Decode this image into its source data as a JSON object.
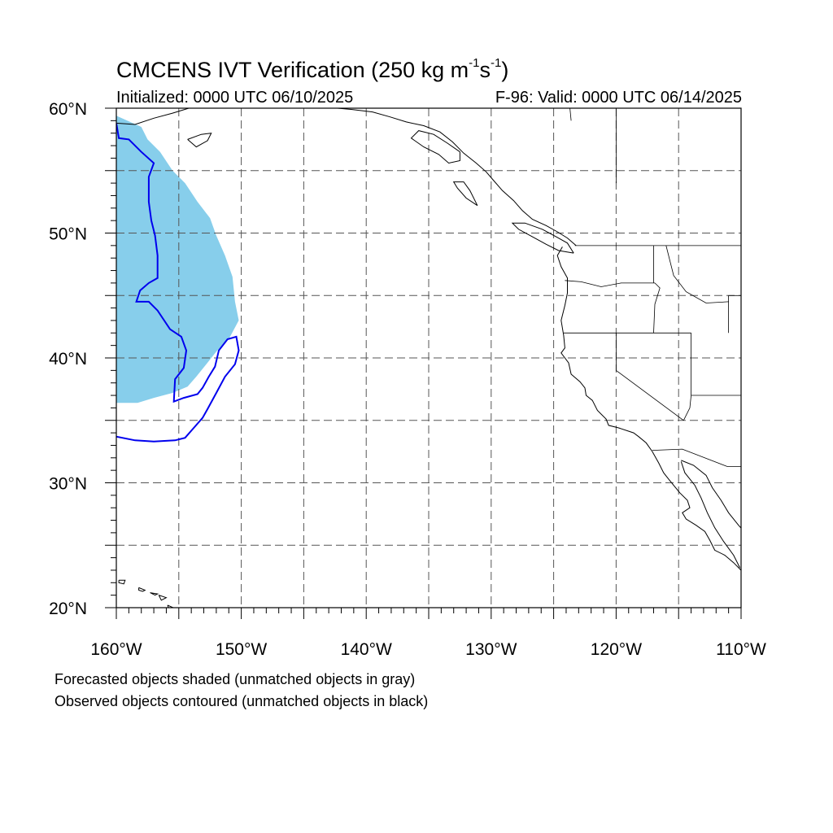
{
  "title": {
    "prefix": "CMCENS IVT Verification (250 kg m",
    "sup1": "-1",
    "mid": "s",
    "sup2": "-1",
    "suffix": ")"
  },
  "subtitle_left": "Initialized: 0000 UTC 06/10/2025",
  "subtitle_right": "F-96: Valid: 0000 UTC 06/14/2025",
  "notes": [
    "Forecasted objects shaded (unmatched objects in gray)",
    "Observed objects contoured (unmatched objects in black)"
  ],
  "map": {
    "projection": "cylindrical equidistant",
    "lon_range": [
      -160,
      -110
    ],
    "lat_range": [
      20,
      60
    ],
    "lon_ticks": [
      {
        "lon": -160,
        "label": "160°W"
      },
      {
        "lon": -150,
        "label": "150°W"
      },
      {
        "lon": -140,
        "label": "140°W"
      },
      {
        "lon": -130,
        "label": "130°W"
      },
      {
        "lon": -120,
        "label": "120°W"
      },
      {
        "lon": -110,
        "label": "110°W"
      }
    ],
    "lat_ticks": [
      {
        "lat": 20,
        "label": "20°N"
      },
      {
        "lat": 30,
        "label": "30°N"
      },
      {
        "lat": 40,
        "label": "40°N"
      },
      {
        "lat": 50,
        "label": "50°N"
      },
      {
        "lat": 60,
        "label": "60°N"
      }
    ],
    "grid_lons": [
      -155,
      -150,
      -145,
      -140,
      -135,
      -130,
      -125,
      -120,
      -115
    ],
    "grid_lats": [
      25,
      30,
      35,
      40,
      45,
      50,
      55
    ],
    "colors": {
      "forecast_fill": "#87ceeb",
      "observed_contour": "#0000ee",
      "coastline": "#000000",
      "grid": "#555555"
    },
    "forecast_object": {
      "name": "forecast IVT object (matched)",
      "polygon": [
        [
          -160,
          59.4
        ],
        [
          -158,
          58.5
        ],
        [
          -157.5,
          57.5
        ],
        [
          -156.5,
          56.5
        ],
        [
          -155.5,
          55
        ],
        [
          -154.5,
          54
        ],
        [
          -153.5,
          52.5
        ],
        [
          -152.5,
          51.2
        ],
        [
          -152,
          49.8
        ],
        [
          -151.3,
          48.2
        ],
        [
          -150.7,
          46.5
        ],
        [
          -150.5,
          44.5
        ],
        [
          -150.2,
          43
        ],
        [
          -151,
          41.5
        ],
        [
          -152,
          40.5
        ],
        [
          -152.8,
          39.5
        ],
        [
          -153.6,
          38.5
        ],
        [
          -154.3,
          37.7
        ],
        [
          -155.5,
          37.2
        ],
        [
          -157,
          36.8
        ],
        [
          -158.3,
          36.4
        ],
        [
          -160,
          36.4
        ]
      ]
    },
    "observed_objects": [
      {
        "name": "observed IVT object 1",
        "polyline": [
          [
            -160,
            58.8
          ],
          [
            -159.8,
            57.6
          ],
          [
            -159,
            57.5
          ],
          [
            -158,
            56.5
          ],
          [
            -157,
            55.6
          ],
          [
            -157.4,
            54.5
          ],
          [
            -157.4,
            52.5
          ],
          [
            -157.2,
            51
          ],
          [
            -156.9,
            49.8
          ],
          [
            -156.7,
            48.2
          ],
          [
            -156.7,
            46.4
          ],
          [
            -157.4,
            46
          ],
          [
            -158.1,
            45.4
          ],
          [
            -158.4,
            44.5
          ],
          [
            -157.4,
            44.5
          ],
          [
            -156.7,
            43.8
          ],
          [
            -155.7,
            42.3
          ],
          [
            -154.8,
            41.7
          ],
          [
            -154.4,
            40.6
          ],
          [
            -154.6,
            39.2
          ],
          [
            -155.3,
            38.3
          ],
          [
            -155.4,
            36.5
          ],
          [
            -154.6,
            36.8
          ],
          [
            -153.5,
            37.1
          ],
          [
            -153.1,
            37.6
          ],
          [
            -152.6,
            38.5
          ],
          [
            -152.1,
            39.3
          ],
          [
            -151.8,
            40.6
          ],
          [
            -151.1,
            41.5
          ],
          [
            -150.4,
            41.7
          ],
          [
            -150.2,
            40.6
          ],
          [
            -150.5,
            39.5
          ],
          [
            -151.3,
            38.5
          ],
          [
            -152,
            37.2
          ],
          [
            -152.7,
            35.9
          ],
          [
            -153.1,
            35.2
          ],
          [
            -153.8,
            34.4
          ],
          [
            -154.5,
            33.6
          ],
          [
            -155.3,
            33.4
          ],
          [
            -157,
            33.3
          ],
          [
            -158.5,
            33.4
          ],
          [
            -160,
            33.7
          ]
        ]
      }
    ],
    "coast": {
      "us_west": [
        [
          -124.3,
          48.9
        ],
        [
          -124.7,
          48.2
        ],
        [
          -124.4,
          47.3
        ],
        [
          -123.9,
          46.4
        ],
        [
          -123.9,
          45.2
        ],
        [
          -124.1,
          44.2
        ],
        [
          -124.4,
          43
        ],
        [
          -124.2,
          41.8
        ],
        [
          -124.1,
          40.8
        ],
        [
          -124.4,
          40.4
        ],
        [
          -123.8,
          39.6
        ],
        [
          -123.6,
          38.7
        ],
        [
          -122.9,
          38.1
        ],
        [
          -122.5,
          37.6
        ],
        [
          -122.4,
          37
        ],
        [
          -121.9,
          36.6
        ],
        [
          -121.5,
          35.8
        ],
        [
          -120.8,
          35.1
        ],
        [
          -120.6,
          34.6
        ],
        [
          -119.8,
          34.4
        ],
        [
          -118.6,
          34.0
        ],
        [
          -118.2,
          33.7
        ],
        [
          -117.6,
          33.2
        ],
        [
          -117.1,
          32.5
        ],
        [
          -116.6,
          31.6
        ],
        [
          -116.2,
          30.8
        ],
        [
          -115.8,
          30.3
        ],
        [
          -115.4,
          29.8
        ],
        [
          -114.9,
          29.2
        ],
        [
          -114.3,
          28.6
        ],
        [
          -114.1,
          28
        ],
        [
          -114.7,
          27.6
        ],
        [
          -114.4,
          27.1
        ],
        [
          -113.6,
          26.6
        ],
        [
          -112.9,
          26.1
        ],
        [
          -112.5,
          25.4
        ],
        [
          -112.1,
          24.6
        ],
        [
          -111.3,
          24.2
        ],
        [
          -110.6,
          23.6
        ],
        [
          -109.9,
          22.9
        ]
      ],
      "gulf_ca_east": [
        [
          -114.8,
          31.8
        ],
        [
          -113.8,
          31.4
        ],
        [
          -112.8,
          30.6
        ],
        [
          -112.3,
          29.6
        ],
        [
          -111.6,
          28.6
        ],
        [
          -111,
          27.6
        ],
        [
          -110.2,
          26.6
        ],
        [
          -109.4,
          25.7
        ],
        [
          -109.2,
          24.8
        ]
      ],
      "baja_east": [
        [
          -114.8,
          31.7
        ],
        [
          -114.5,
          30.8
        ],
        [
          -113.7,
          29.8
        ],
        [
          -113.2,
          28.8
        ],
        [
          -112.7,
          27.6
        ],
        [
          -112.1,
          26.4
        ],
        [
          -111.4,
          25.3
        ],
        [
          -110.6,
          24.2
        ],
        [
          -110.1,
          23.2
        ]
      ],
      "bc_coast": [
        [
          -123.2,
          49.0
        ],
        [
          -123.9,
          49.6
        ],
        [
          -124.7,
          50.1
        ],
        [
          -125.6,
          50.6
        ],
        [
          -126.7,
          51.1
        ],
        [
          -127.5,
          51.8
        ],
        [
          -128.2,
          52.6
        ],
        [
          -129.1,
          53.4
        ],
        [
          -129.8,
          54.2
        ],
        [
          -130.4,
          54.9
        ],
        [
          -131.2,
          55.6
        ],
        [
          -132.2,
          56.4
        ],
        [
          -133.1,
          57.3
        ],
        [
          -134.1,
          58.1
        ],
        [
          -135.4,
          58.6
        ],
        [
          -136.8,
          58.9
        ],
        [
          -138.1,
          59.3
        ],
        [
          -139.5,
          59.7
        ],
        [
          -141.2,
          59.9
        ],
        [
          -142.3,
          60
        ]
      ],
      "vancouver_island": [
        [
          -123.4,
          48.4
        ],
        [
          -124.6,
          48.6
        ],
        [
          -125.6,
          49.1
        ],
        [
          -126.7,
          49.7
        ],
        [
          -127.8,
          50.3
        ],
        [
          -128.3,
          50.8
        ],
        [
          -127.3,
          50.8
        ],
        [
          -125.9,
          50.3
        ],
        [
          -124.8,
          49.7
        ],
        [
          -123.9,
          49.2
        ],
        [
          -123.4,
          48.4
        ]
      ],
      "haida_gwaii": [
        [
          -131.1,
          52.2
        ],
        [
          -132.0,
          52.8
        ],
        [
          -132.7,
          53.6
        ],
        [
          -133.0,
          54.1
        ],
        [
          -132.2,
          54.1
        ],
        [
          -131.7,
          53.4
        ],
        [
          -131.1,
          52.2
        ]
      ],
      "alaska_islands": [
        [
          -132.5,
          56.5
        ],
        [
          -133.5,
          57.2
        ],
        [
          -134.6,
          57.9
        ],
        [
          -135.8,
          58.2
        ],
        [
          -136.4,
          57.6
        ],
        [
          -135.4,
          56.9
        ],
        [
          -134.2,
          56.3
        ],
        [
          -133.4,
          55.6
        ],
        [
          -132.5,
          55.8
        ],
        [
          -132.5,
          56.5
        ]
      ],
      "kodiak_kenai": [
        [
          -160,
          58.8
        ],
        [
          -158.5,
          58.7
        ],
        [
          -157.0,
          59.2
        ],
        [
          -155.5,
          59.6
        ],
        [
          -154.2,
          60
        ]
      ],
      "kodiak": [
        [
          -154.3,
          57.5
        ],
        [
          -153.2,
          57.9
        ],
        [
          -152.4,
          58.0
        ],
        [
          -152.7,
          57.4
        ],
        [
          -153.6,
          56.9
        ],
        [
          -154.3,
          57.5
        ]
      ],
      "hawaii": [
        [
          [
            -159.8,
            22.2
          ],
          [
            -159.3,
            22.2
          ],
          [
            -159.4,
            21.9
          ],
          [
            -159.8,
            22.0
          ],
          [
            -159.8,
            22.2
          ]
        ],
        [
          [
            -158.2,
            21.6
          ],
          [
            -157.7,
            21.4
          ],
          [
            -157.9,
            21.3
          ],
          [
            -158.2,
            21.4
          ],
          [
            -158.2,
            21.6
          ]
        ],
        [
          [
            -157.3,
            21.2
          ],
          [
            -156.7,
            21.1
          ],
          [
            -156.9,
            21.0
          ],
          [
            -157.3,
            21.2
          ]
        ],
        [
          [
            -156.6,
            21.0
          ],
          [
            -156.0,
            20.8
          ],
          [
            -156.4,
            20.6
          ],
          [
            -156.6,
            21.0
          ]
        ],
        [
          [
            -155.9,
            20.2
          ],
          [
            -155.0,
            19.8
          ],
          [
            -155.6,
            19.4
          ],
          [
            -155.9,
            20.2
          ]
        ]
      ]
    },
    "borders": [
      [
        [
          -123.3,
          49.0
        ],
        [
          -110,
          49.0
        ]
      ],
      [
        [
          -124.1,
          46.2
        ],
        [
          -122.8,
          46.1
        ],
        [
          -121.2,
          45.7
        ],
        [
          -119.6,
          46.0
        ],
        [
          -116.9,
          46.0
        ]
      ],
      [
        [
          -117.0,
          49.0
        ],
        [
          -117.0,
          46.0
        ]
      ],
      [
        [
          -116.9,
          46.0
        ],
        [
          -116.5,
          45.6
        ],
        [
          -116.9,
          44.3
        ],
        [
          -117.0,
          42.0
        ]
      ],
      [
        [
          -124.2,
          42.0
        ],
        [
          -114.0,
          42.0
        ]
      ],
      [
        [
          -120.0,
          42.0
        ],
        [
          -120.0,
          39.0
        ],
        [
          -114.6,
          35.0
        ]
      ],
      [
        [
          -114.6,
          35.0
        ],
        [
          -114.1,
          36.0
        ],
        [
          -114.0,
          37.0
        ],
        [
          -114.0,
          42.0
        ]
      ],
      [
        [
          -114.0,
          37.0
        ],
        [
          -110,
          37.0
        ]
      ],
      [
        [
          -117.1,
          32.6
        ],
        [
          -114.7,
          32.7
        ],
        [
          -111.1,
          31.3
        ],
        [
          -110,
          31.3
        ]
      ],
      [
        [
          -111.0,
          45.0
        ],
        [
          -110,
          45.0
        ]
      ],
      [
        [
          -111.0,
          42.0
        ],
        [
          -111.0,
          45.0
        ]
      ],
      [
        [
          -116.0,
          49.0
        ],
        [
          -115.4,
          46.6
        ],
        [
          -114.4,
          45.3
        ],
        [
          -112.8,
          44.4
        ],
        [
          -111.0,
          44.5
        ]
      ],
      [
        [
          -123.7,
          60.0
        ],
        [
          -123.6,
          59.0
        ]
      ],
      [
        [
          -120.0,
          60.0
        ],
        [
          -120.0,
          54.0
        ]
      ]
    ]
  }
}
